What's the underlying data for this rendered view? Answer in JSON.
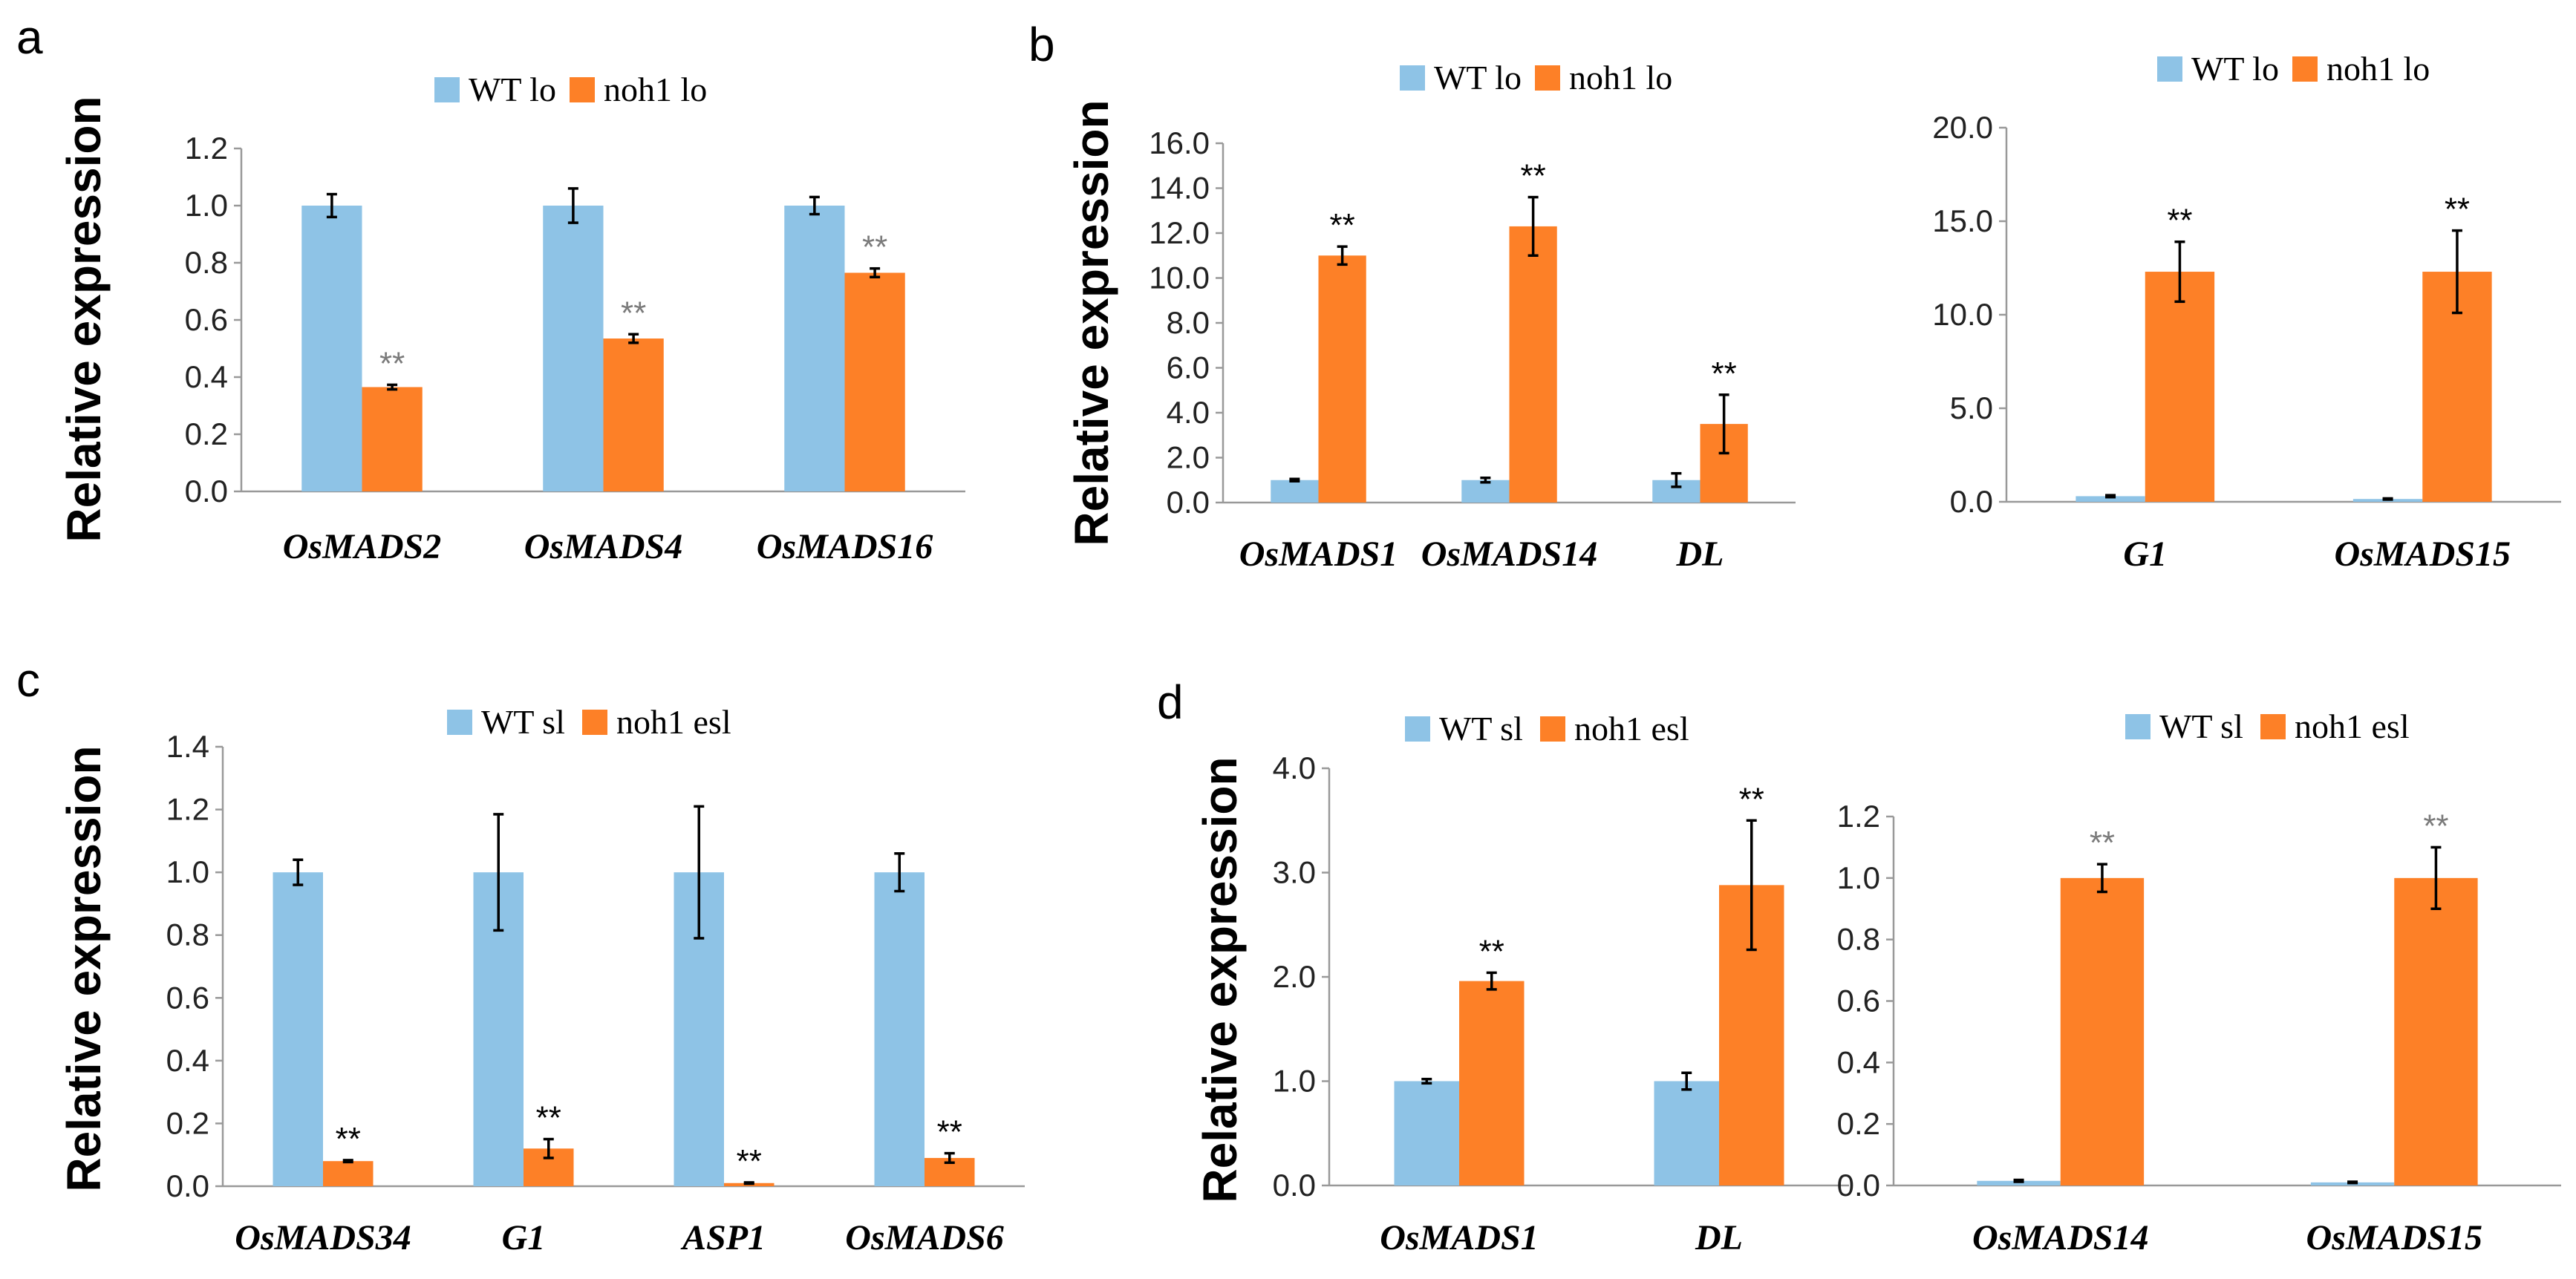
{
  "colors": {
    "wt": "#8ec3e6",
    "mutant": "#fd8027",
    "sig_dark": "#000000",
    "sig_gray": "#7a7a7a"
  },
  "panels": [
    {
      "letter": "a"
    },
    {
      "letter": "b"
    },
    {
      "letter": "c"
    },
    {
      "letter": "d"
    }
  ],
  "chart_data": [
    {
      "id": "a",
      "type": "bar",
      "ylabel": "Relative  expression",
      "legend": [
        "WT lo",
        "noh1 lo"
      ],
      "categories": [
        "OsMADS2",
        "OsMADS4",
        "OsMADS16"
      ],
      "ylim": [
        0,
        1.2
      ],
      "ytick_step": 0.2,
      "decimals": 1,
      "sig_color": "gray",
      "series": [
        {
          "name": "WT lo",
          "values": [
            1.0,
            1.0,
            1.0
          ],
          "errors": [
            0.04,
            0.06,
            0.03
          ]
        },
        {
          "name": "noh1 lo",
          "values": [
            0.365,
            0.535,
            0.765
          ],
          "errors": [
            0.008,
            0.015,
            0.015
          ]
        }
      ],
      "significance": [
        "**",
        "**",
        "**"
      ]
    },
    {
      "id": "b1",
      "type": "bar",
      "ylabel": "Relative  expression",
      "legend": [
        "WT lo",
        "noh1 lo"
      ],
      "categories": [
        "OsMADS1",
        "OsMADS14",
        "DL"
      ],
      "ylim": [
        0,
        16
      ],
      "ytick_step": 2,
      "decimals": 1,
      "sig_color": "dark",
      "series": [
        {
          "name": "WT lo",
          "values": [
            1.0,
            1.0,
            1.0
          ],
          "errors": [
            0.05,
            0.1,
            0.3
          ]
        },
        {
          "name": "noh1 lo",
          "values": [
            11.0,
            12.3,
            3.5
          ],
          "errors": [
            0.4,
            1.3,
            1.3
          ]
        }
      ],
      "significance": [
        "**",
        "**",
        "**"
      ]
    },
    {
      "id": "b2",
      "type": "bar",
      "ylabel": "",
      "legend": [
        "WT lo",
        "noh1 lo"
      ],
      "categories": [
        "G1",
        "OsMADS15"
      ],
      "ylim": [
        0,
        20
      ],
      "ytick_step": 5,
      "decimals": 1,
      "sig_color": "dark",
      "series": [
        {
          "name": "WT lo",
          "values": [
            0.3,
            0.15
          ],
          "errors": [
            0.05,
            0.03
          ]
        },
        {
          "name": "noh1 lo",
          "values": [
            12.3,
            12.3
          ],
          "errors": [
            1.6,
            2.2
          ]
        }
      ],
      "significance": [
        "**",
        "**"
      ]
    },
    {
      "id": "c",
      "type": "bar",
      "ylabel": "Relative  expression",
      "legend": [
        "WT sl",
        "noh1 esl"
      ],
      "categories": [
        "OsMADS34",
        "G1",
        "ASP1",
        "OsMADS6"
      ],
      "ylim": [
        0,
        1.4
      ],
      "ytick_step": 0.2,
      "decimals": 1,
      "sig_color": "dark",
      "series": [
        {
          "name": "WT sl",
          "values": [
            1.0,
            1.0,
            1.0,
            1.0
          ],
          "errors": [
            0.04,
            0.185,
            0.21,
            0.06
          ]
        },
        {
          "name": "noh1 esl",
          "values": [
            0.08,
            0.12,
            0.01,
            0.09
          ],
          "errors": [
            0.003,
            0.03,
            0.002,
            0.015
          ]
        }
      ],
      "significance": [
        "**",
        "**",
        "**",
        "**"
      ]
    },
    {
      "id": "d1",
      "type": "bar",
      "ylabel": "Relative  expression",
      "legend": [
        "WT sl",
        "noh1 esl"
      ],
      "categories": [
        "OsMADS1",
        "DL"
      ],
      "ylim": [
        0,
        4
      ],
      "ytick_step": 1,
      "decimals": 1,
      "sig_color": "dark",
      "series": [
        {
          "name": "WT sl",
          "values": [
            1.0,
            1.0
          ],
          "errors": [
            0.02,
            0.08
          ]
        },
        {
          "name": "noh1 esl",
          "values": [
            1.96,
            2.88
          ],
          "errors": [
            0.08,
            0.62
          ]
        }
      ],
      "significance": [
        "**",
        "**"
      ]
    },
    {
      "id": "d2",
      "type": "bar",
      "ylabel": "",
      "legend": [
        "WT sl",
        "noh1 esl"
      ],
      "categories": [
        "OsMADS14",
        "OsMADS15"
      ],
      "ylim": [
        0,
        1.2
      ],
      "ytick_step": 0.2,
      "decimals": 1,
      "sig_color": "gray",
      "series": [
        {
          "name": "WT sl",
          "values": [
            0.015,
            0.01
          ],
          "errors": [
            0.003,
            0.002
          ]
        },
        {
          "name": "noh1 esl",
          "values": [
            1.0,
            1.0
          ],
          "errors": [
            0.045,
            0.1
          ]
        }
      ],
      "significance": [
        "**",
        "**"
      ]
    }
  ]
}
